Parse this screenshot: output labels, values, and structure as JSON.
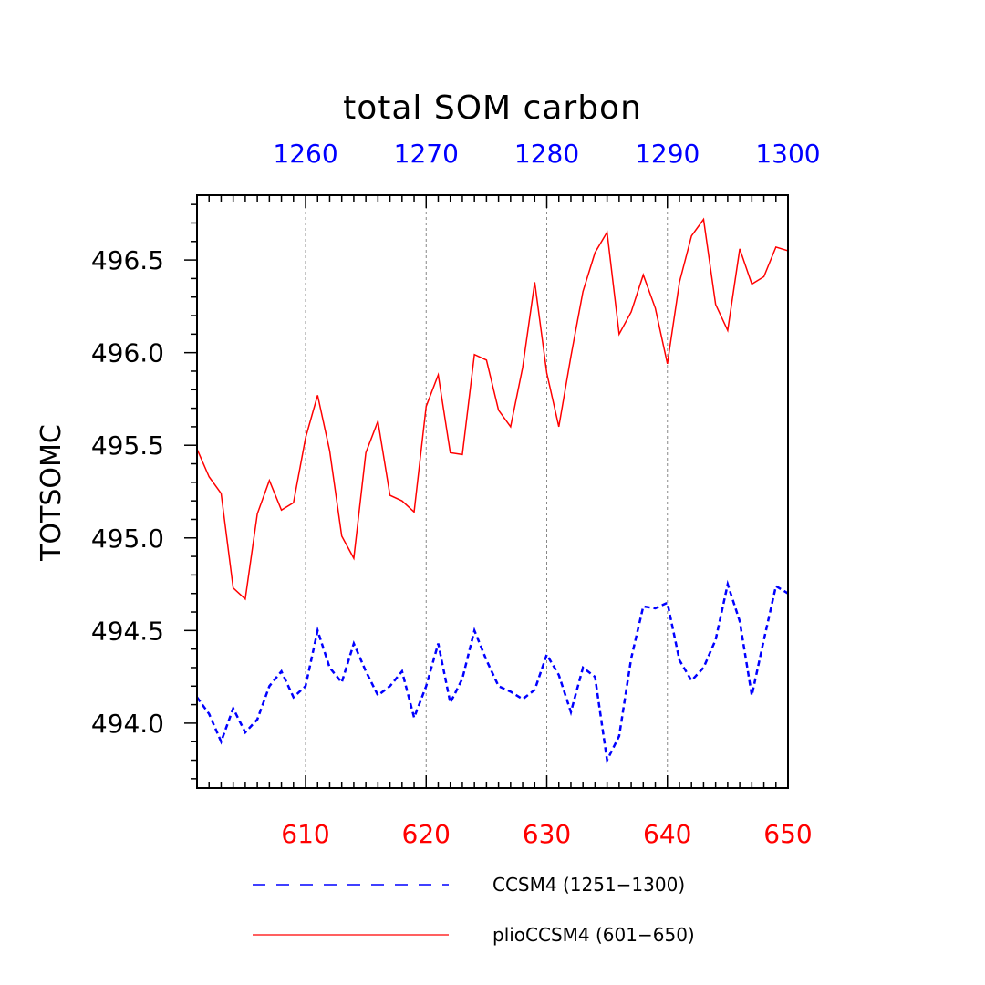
{
  "chart_data": {
    "type": "line",
    "title": "total SOM carbon",
    "xlabel": "",
    "ylabel": "TOTSOMC",
    "xlim": [
      601,
      650
    ],
    "ylim": [
      493.65,
      496.85
    ],
    "x_bottom_ticks": [
      "610",
      "620",
      "630",
      "640",
      "650"
    ],
    "x_top_ticks": [
      "1260",
      "1270",
      "1280",
      "1290",
      "1300"
    ],
    "y_ticks": [
      "494.0",
      "494.5",
      "495.0",
      "495.5",
      "496.0",
      "496.5"
    ],
    "grid": "vertical dashed at major x ticks",
    "legend_position": "bottom",
    "colors": {
      "ccsm4": "#0000ff",
      "plio": "#ff0000",
      "axis": "#000000",
      "grid": "#888888"
    },
    "x": [
      601,
      602,
      603,
      604,
      605,
      606,
      607,
      608,
      609,
      610,
      611,
      612,
      613,
      614,
      615,
      616,
      617,
      618,
      619,
      620,
      621,
      622,
      623,
      624,
      625,
      626,
      627,
      628,
      629,
      630,
      631,
      632,
      633,
      634,
      635,
      636,
      637,
      638,
      639,
      640,
      641,
      642,
      643,
      644,
      645,
      646,
      647,
      648,
      649,
      650
    ],
    "series": [
      {
        "name": "CCSM4 (1251−1300)",
        "style": "dashed",
        "color": "#0000ff",
        "values": [
          494.14,
          494.05,
          493.9,
          494.08,
          493.95,
          494.02,
          494.2,
          494.28,
          494.14,
          494.2,
          494.5,
          494.3,
          494.22,
          494.43,
          494.28,
          494.15,
          494.2,
          494.28,
          494.03,
          494.2,
          494.43,
          494.11,
          494.24,
          494.5,
          494.34,
          494.2,
          494.17,
          494.13,
          494.18,
          494.37,
          494.26,
          494.06,
          494.3,
          494.25,
          493.8,
          493.93,
          494.35,
          494.63,
          494.62,
          494.65,
          494.34,
          494.23,
          494.3,
          494.45,
          494.75,
          494.55,
          494.15,
          494.45,
          494.74,
          494.7
        ]
      },
      {
        "name": "plioCCSM4 (601−650)",
        "style": "solid",
        "color": "#ff0000",
        "values": [
          495.48,
          495.33,
          495.24,
          494.73,
          494.67,
          495.13,
          495.31,
          495.15,
          495.19,
          495.54,
          495.77,
          495.47,
          495.01,
          494.89,
          495.46,
          495.63,
          495.23,
          495.2,
          495.14,
          495.71,
          495.88,
          495.46,
          495.45,
          495.99,
          495.96,
          495.69,
          495.6,
          495.92,
          496.38,
          495.89,
          495.6,
          495.98,
          496.33,
          496.54,
          496.65,
          496.1,
          496.22,
          496.42,
          496.24,
          495.94,
          496.38,
          496.63,
          496.72,
          496.26,
          496.12,
          496.56,
          496.37,
          496.41,
          496.57,
          496.55
        ]
      }
    ]
  }
}
